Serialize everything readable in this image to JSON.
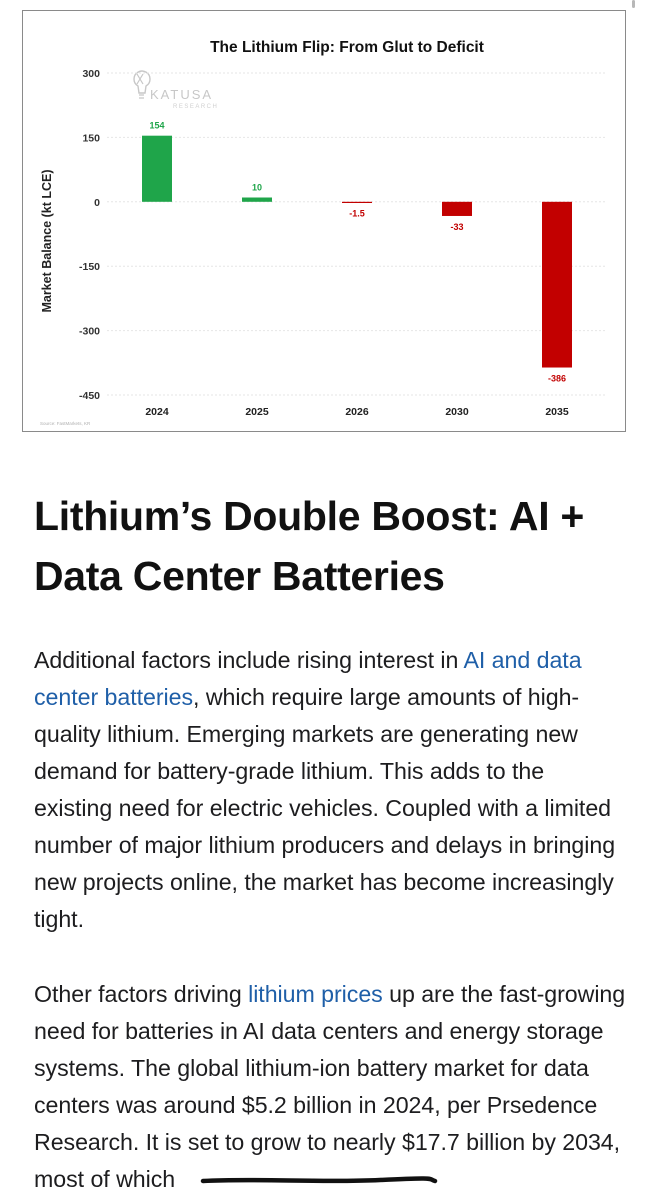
{
  "chart_data": {
    "type": "bar",
    "title": "The Lithium Flip: From Glut to Deficit",
    "ylabel": "Market Balance (kt LCE)",
    "xlabel": "",
    "categories": [
      "2024",
      "2025",
      "2026",
      "2030",
      "2035"
    ],
    "values": [
      154,
      10,
      -1.5,
      -33,
      -386
    ],
    "value_labels": [
      "154",
      "10",
      "-1.5",
      "-33",
      "-386"
    ],
    "yticks": [
      300,
      150,
      0,
      -150,
      -300,
      -450
    ],
    "ytick_labels": [
      "300",
      "150",
      "0",
      "-150",
      "-300",
      "-450"
    ],
    "ylim": [
      -450,
      300
    ],
    "positive_color": "#1fa54a",
    "negative_color": "#c20000",
    "grid": true,
    "watermark": {
      "brand": "KATUSA",
      "sub": "RESEARCH"
    },
    "source_note": "Source: FastMarkets, KR"
  },
  "article": {
    "heading": "Lithium’s Double Boost: AI + Data Center Batteries",
    "para1": {
      "before_link": "Additional factors include rising interest in ",
      "link_text": "AI and data center batteries",
      "after_link": ", which require large amounts of high-quality lithium. Emerging markets are generating new demand for battery-grade lithium. This adds to the existing need for electric vehicles. Coupled with a limited number of major lithium producers and delays in bringing new projects online, the market has become increasingly tight."
    },
    "para2": {
      "before_link": "Other factors driving ",
      "link_text": "lithium prices",
      "after_link": " up are the fast-growing need for batteries in AI data centers and energy storage systems. The global lithium-ion battery market for data centers was around $5.2 billion in 2024, per Prsedence Research. It is set to grow to nearly $17.7 billion by 2034, most of which"
    }
  },
  "colors": {
    "link": "#1f5fa8",
    "text": "#1d1d1f",
    "heading": "#111111"
  }
}
